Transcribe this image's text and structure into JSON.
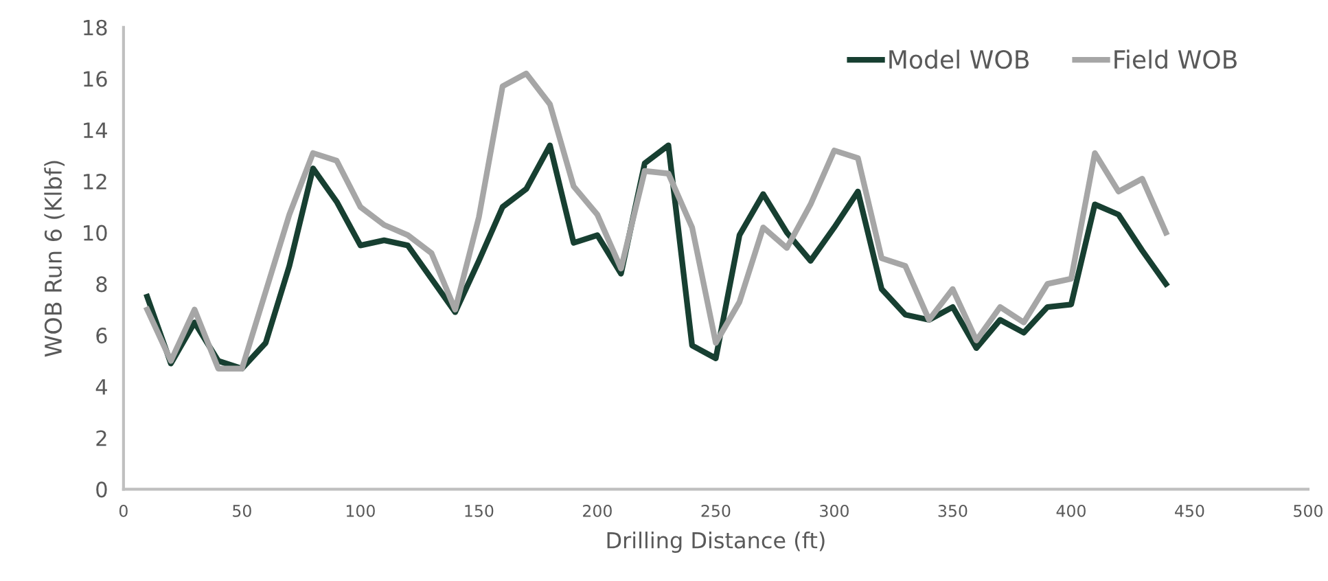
{
  "chart_data": {
    "type": "line",
    "xlabel": "Drilling Distance (ft)",
    "ylabel": "WOB Run 6 (Klbf)",
    "x": [
      10,
      20,
      30,
      40,
      50,
      60,
      70,
      80,
      90,
      100,
      110,
      120,
      130,
      140,
      150,
      160,
      170,
      180,
      190,
      200,
      210,
      220,
      230,
      240,
      250,
      260,
      270,
      280,
      290,
      300,
      310,
      320,
      330,
      340,
      350,
      360,
      370,
      380,
      390,
      400,
      410,
      420,
      430,
      440
    ],
    "series": [
      {
        "name": "Model WOB",
        "color": "#173f31",
        "values": [
          7.5,
          4.9,
          6.5,
          5.0,
          4.7,
          5.7,
          8.7,
          12.5,
          11.2,
          9.5,
          9.7,
          9.5,
          8.2,
          6.9,
          8.9,
          11.0,
          11.7,
          13.4,
          9.6,
          9.9,
          8.4,
          12.7,
          13.4,
          5.6,
          5.1,
          9.9,
          11.5,
          10.0,
          8.9,
          10.2,
          11.6,
          7.8,
          6.8,
          6.6,
          7.1,
          5.5,
          6.6,
          6.1,
          7.1,
          7.2,
          11.1,
          10.7,
          9.3,
          8.0
        ]
      },
      {
        "name": "Field WOB",
        "color": "#a6a6a6",
        "values": [
          7.0,
          5.0,
          7.0,
          4.7,
          4.7,
          7.7,
          10.7,
          13.1,
          12.8,
          11.0,
          10.3,
          9.9,
          9.2,
          7.0,
          10.6,
          15.7,
          16.2,
          15.0,
          11.8,
          10.7,
          8.6,
          12.4,
          12.3,
          10.2,
          5.7,
          7.3,
          10.2,
          9.4,
          11.1,
          13.2,
          12.9,
          9.0,
          8.7,
          6.6,
          7.8,
          5.8,
          7.1,
          6.5,
          8.0,
          8.2,
          13.1,
          11.6,
          12.1,
          10.0
        ]
      }
    ],
    "xlim": [
      0,
      500
    ],
    "xticks": [
      0,
      50,
      100,
      150,
      200,
      250,
      300,
      350,
      400,
      450,
      500
    ],
    "ylim": [
      0,
      18
    ],
    "yticks": [
      0,
      2,
      4,
      6,
      8,
      10,
      12,
      14,
      16,
      18
    ],
    "grid": false,
    "legend": "top right",
    "marker": "none",
    "line_style": "solid"
  }
}
